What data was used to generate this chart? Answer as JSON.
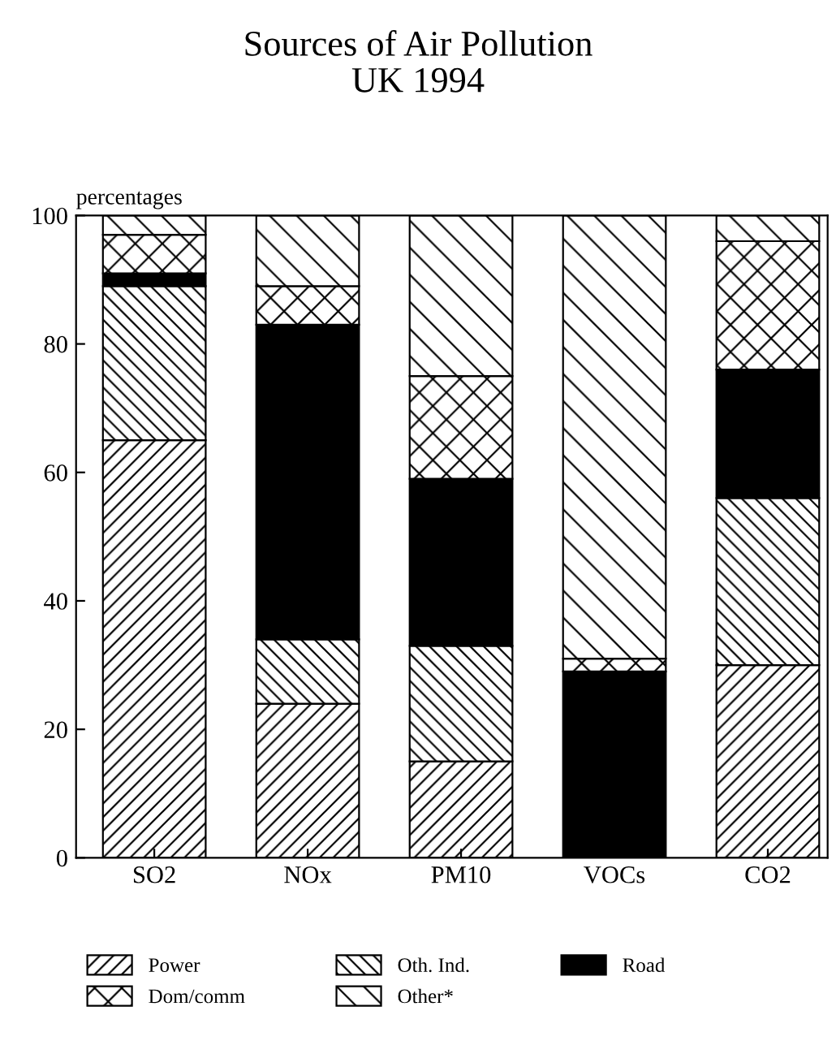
{
  "chart_data": {
    "type": "bar",
    "title": "Sources of Air Pollution",
    "subtitle": "UK 1994",
    "ylabel": "percentages",
    "categories": [
      "SO2",
      "NOx",
      "PM10",
      "VOCs",
      "CO2"
    ],
    "stacked": true,
    "ylim": [
      0,
      100
    ],
    "yticks": [
      0,
      20,
      40,
      60,
      80,
      100
    ],
    "grid": false,
    "legend": "bottom",
    "series": [
      {
        "name": "Power",
        "color": "#000000",
        "values": [
          65,
          24,
          15,
          0,
          30
        ]
      },
      {
        "name": "Oth. Ind.",
        "color": "#000000",
        "values": [
          24,
          10,
          18,
          0,
          26
        ]
      },
      {
        "name": "Road",
        "color": "#000000",
        "values": [
          2,
          49,
          26,
          29,
          20
        ]
      },
      {
        "name": "Dom/comm",
        "color": "#000000",
        "values": [
          6,
          6,
          16,
          2,
          20
        ]
      },
      {
        "name": "Other*",
        "color": "#000000",
        "values": [
          3,
          11,
          25,
          69,
          4
        ]
      }
    ]
  }
}
